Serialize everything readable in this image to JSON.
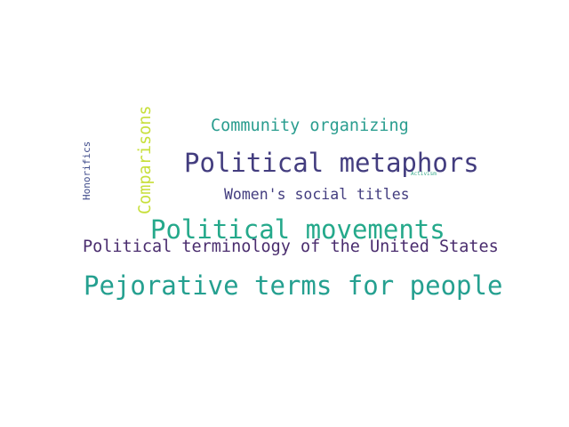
{
  "word_cloud": {
    "words": [
      {
        "text": "Community organizing",
        "color": "#2a9d8f"
      },
      {
        "text": "Political metaphors",
        "color": "#433d7f"
      },
      {
        "text": "Women's social titles",
        "color": "#433d7f"
      },
      {
        "text": "Political movements",
        "color": "#25a98b"
      },
      {
        "text": "Political terminology of the United States",
        "color": "#4a2d6e"
      },
      {
        "text": "Pejorative terms for people",
        "color": "#25a090"
      },
      {
        "text": "Comparisons",
        "color": "#c7df3a"
      },
      {
        "text": "Honorifics",
        "color": "#3e4a8a"
      },
      {
        "text": "Activism",
        "color": "#3aaa8c"
      }
    ]
  }
}
